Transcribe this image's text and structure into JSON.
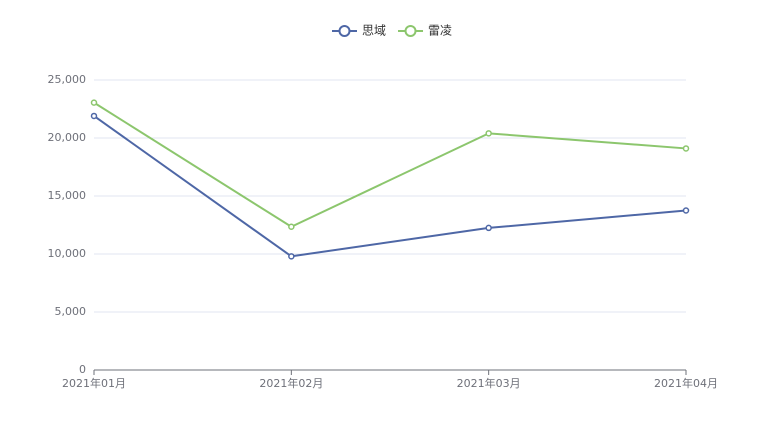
{
  "chart_data": {
    "type": "line",
    "categories": [
      "2021年01月",
      "2021年02月",
      "2021年03月",
      "2021年04月"
    ],
    "series": [
      {
        "name": "思域",
        "color": "#4e67a6",
        "values": [
          21900,
          9800,
          12250,
          13750
        ]
      },
      {
        "name": "雷凌",
        "color": "#8cc66d",
        "values": [
          23050,
          12350,
          20400,
          19100
        ]
      }
    ],
    "ylim": [
      0,
      25000
    ],
    "yticks": [
      0,
      {
        "value": 5000,
        "label": "5,000"
      },
      {
        "value": 10000,
        "label": "10,000"
      },
      {
        "value": 15000,
        "label": "15,000"
      },
      {
        "value": 20000,
        "label": "20,000"
      },
      {
        "value": 25000,
        "label": "25,000"
      }
    ],
    "grid": true,
    "legend": "top"
  }
}
